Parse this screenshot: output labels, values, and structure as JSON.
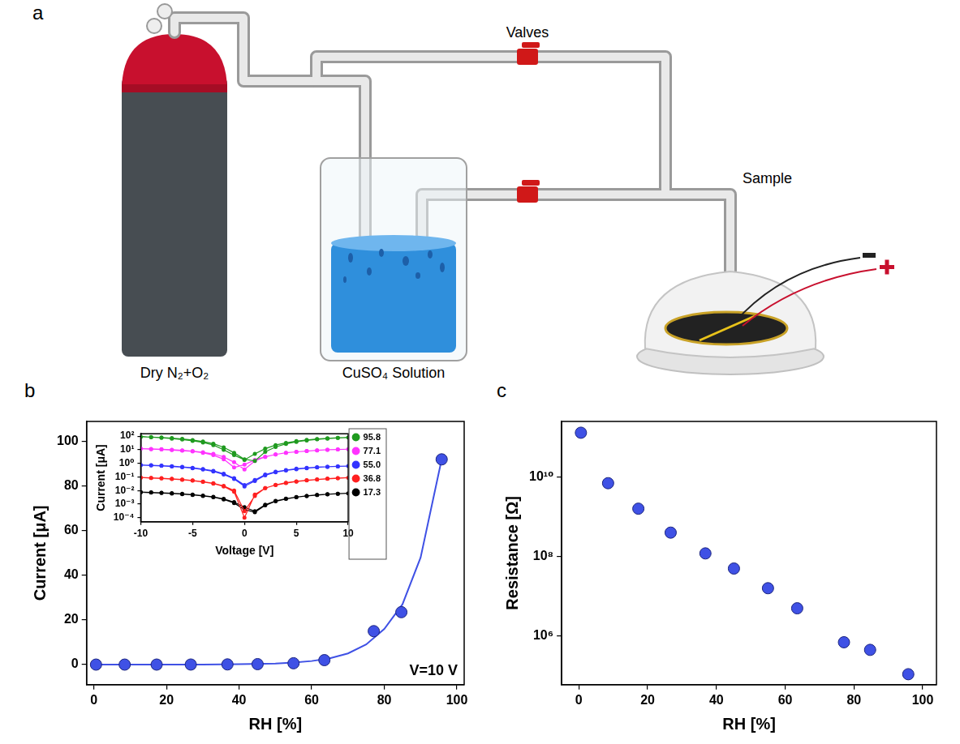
{
  "diagram": {
    "panel_label": "a",
    "labels": {
      "gas": "Dry N₂+O₂",
      "solution": "CuSO₄ Solution",
      "valves": "Valves",
      "sample": "Sample"
    }
  },
  "chart_data": [
    {
      "panel_label": "b",
      "type": "scatter",
      "x_label": "RH [%]",
      "y_label": "Current [μA]",
      "annotations": [
        "V=10 V"
      ],
      "x": [
        0.6,
        8.5,
        17.3,
        26.7,
        36.8,
        45.1,
        55.0,
        63.5,
        77.1,
        84.7,
        95.8
      ],
      "series": [
        {
          "type": "scatter",
          "marker": "circle",
          "color": "#3f51e5",
          "values": [
            0.0001,
            0.0014,
            0.006,
            0.025,
            0.085,
            0.2,
            0.6,
            2.0,
            15,
            23.5,
            92
          ]
        },
        {
          "type": "line",
          "marker": "none",
          "line_style": "solid",
          "color": "#3f51e5",
          "x": [
            0,
            10,
            20,
            30,
            40,
            50,
            55,
            60,
            65,
            70,
            75,
            80,
            85,
            90,
            95.8
          ],
          "values": [
            0,
            0,
            0,
            0.05,
            0.2,
            0.5,
            0.9,
            1.6,
            2.8,
            5,
            9,
            16,
            27,
            48,
            92
          ]
        }
      ],
      "xlim": [
        -2,
        102
      ],
      "ylim": [
        -9,
        109
      ],
      "xticks": [
        0,
        20,
        40,
        60,
        80,
        100
      ],
      "yticks": [
        0,
        20,
        40,
        60,
        80,
        100
      ],
      "grid": false,
      "inset": {
        "type": "line",
        "x_label": "Voltage [V]",
        "y_label": "Current [μA]",
        "log": "y",
        "legend": "right",
        "grid": false,
        "x": [
          -10,
          -9,
          -8,
          -7,
          -6,
          -5,
          -4,
          -3,
          -2,
          -1,
          0,
          1,
          2,
          3,
          4,
          5,
          6,
          7,
          8,
          9,
          10,
          9,
          8,
          7,
          6,
          5,
          4,
          3,
          2,
          1,
          0,
          -1,
          -2,
          -3,
          -4,
          -5,
          -6,
          -7,
          -8,
          -9,
          -10
        ],
        "series": [
          {
            "name": "95.8",
            "color": "#1f9a1f",
            "marker": "circle",
            "values": [
              90,
              86,
              80,
              72,
              63,
              52,
              40,
              28,
              15,
              6,
              2.0,
              1.5,
              7,
              16,
              27,
              38,
              48,
              58,
              66,
              74,
              80,
              76,
              70,
              62,
              53,
              43,
              32,
              22,
              12,
              5,
              1.8,
              4,
              10,
              22,
              34,
              45,
              56,
              66,
              75,
              83,
              90
            ]
          },
          {
            "name": "77.1",
            "color": "#ff33ff",
            "marker": "circle",
            "values": [
              12,
              11.5,
              11,
              10,
              9,
              8,
              6.5,
              5,
              3,
              1.2,
              0.35,
              1.5,
              3,
              4.5,
              6,
              7,
              8,
              9,
              10,
              10.5,
              11,
              10.5,
              10,
              9,
              8,
              7,
              6,
              4.5,
              3,
              1.8,
              0.8,
              0.5,
              2,
              4,
              6,
              7.5,
              8.5,
              9.5,
              10.5,
              11,
              12
            ]
          },
          {
            "name": "55.0",
            "color": "#3333ff",
            "marker": "circle",
            "values": [
              0.75,
              0.72,
              0.68,
              0.62,
              0.55,
              0.47,
              0.38,
              0.28,
              0.17,
              0.08,
              0.025,
              0.06,
              0.15,
              0.24,
              0.32,
              0.4,
              0.46,
              0.52,
              0.56,
              0.6,
              0.63,
              0.6,
              0.56,
              0.5,
              0.44,
              0.37,
              0.3,
              0.22,
              0.13,
              0.05,
              0.02,
              0.07,
              0.15,
              0.25,
              0.35,
              0.44,
              0.52,
              0.59,
              0.65,
              0.7,
              0.75
            ]
          },
          {
            "name": "36.8",
            "color": "#ff2020",
            "marker": "circle",
            "values": [
              0.09,
              0.085,
              0.08,
              0.072,
              0.064,
              0.055,
              0.045,
              0.034,
              0.022,
              0.01,
              0.0003,
              0.004,
              0.015,
              0.025,
              0.035,
              0.045,
              0.055,
              0.064,
              0.072,
              0.08,
              0.087,
              0.082,
              0.075,
              0.066,
              0.057,
              0.047,
              0.037,
              0.026,
              0.015,
              0.005,
              0.0001,
              0.008,
              0.02,
              0.032,
              0.043,
              0.053,
              0.062,
              0.07,
              0.077,
              0.083,
              0.09
            ]
          },
          {
            "name": "17.3",
            "color": "#000000",
            "marker": "circle",
            "values": [
              0.0075,
              0.007,
              0.0065,
              0.006,
              0.0054,
              0.0047,
              0.004,
              0.0032,
              0.0022,
              0.0012,
              0.0004,
              0.00025,
              0.0008,
              0.0016,
              0.0024,
              0.0032,
              0.004,
              0.0047,
              0.0053,
              0.0058,
              0.0062,
              0.0058,
              0.0052,
              0.0046,
              0.004,
              0.0033,
              0.0025,
              0.0017,
              0.0009,
              0.0003,
              0.0006,
              0.0014,
              0.0024,
              0.0034,
              0.0042,
              0.005,
              0.0057,
              0.0063,
              0.0068,
              0.0072,
              0.0076
            ]
          }
        ],
        "xlim": [
          -10,
          10
        ],
        "ylim": [
          5e-05,
          150
        ],
        "xticks": [
          -10,
          -5,
          0,
          5,
          10
        ],
        "yticks": [
          {
            "value": 0.0001,
            "label": "10⁻⁴"
          },
          {
            "value": 0.001,
            "label": "10⁻³"
          },
          {
            "value": 0.01,
            "label": "10⁻²"
          },
          {
            "value": 0.1,
            "label": "10⁻¹"
          },
          {
            "value": 1,
            "label": "10⁰"
          },
          {
            "value": 10,
            "label": "10¹"
          },
          {
            "value": 100,
            "label": "10²"
          }
        ]
      }
    },
    {
      "panel_label": "c",
      "type": "scatter",
      "x_label": "RH [%]",
      "y_label": "Resistance [Ω]",
      "log": "y",
      "x": [
        0.6,
        8.5,
        17.3,
        26.7,
        36.8,
        45.1,
        55.0,
        63.5,
        77.1,
        84.7,
        95.8
      ],
      "values": [
        130000000000,
        7000000000,
        1600000000,
        400000000,
        120000000,
        50000000,
        16000000,
        5000000,
        700000,
        450000,
        110000
      ],
      "color": "#3f51e5",
      "marker": "circle",
      "xlim": [
        -5,
        104
      ],
      "ylim": [
        60000,
        250000000000
      ],
      "xticks": [
        0,
        20,
        40,
        60,
        80,
        100
      ],
      "yticks": [
        {
          "value": 1000000,
          "label": "10⁶"
        },
        {
          "value": 100000000,
          "label": "10⁸"
        },
        {
          "value": 10000000000,
          "label": "10¹⁰"
        }
      ],
      "grid": false
    }
  ]
}
